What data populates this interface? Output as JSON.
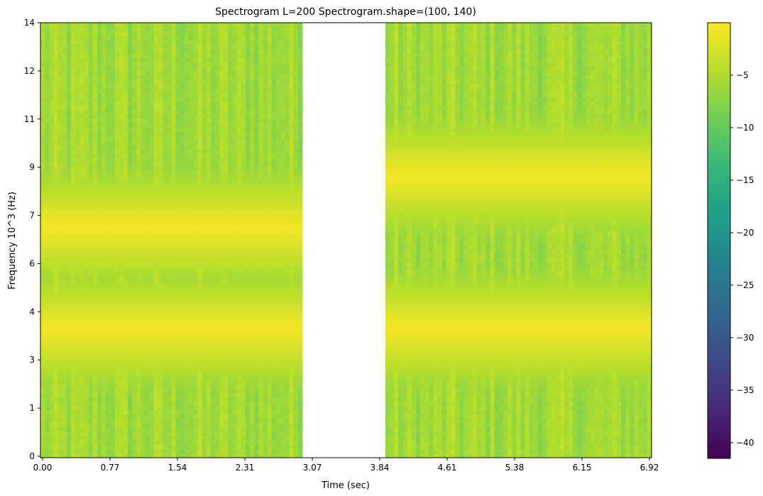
{
  "chart_data": {
    "type": "heatmap",
    "title": "Spectrogram L=200 Spectrogram.shape=(100, 140)",
    "xlabel": "Time (sec)",
    "ylabel": "Frequency 10^3 (Hz)",
    "xticks": [
      "0.00",
      "0.77",
      "1.54",
      "2.31",
      "3.07",
      "3.84",
      "4.61",
      "5.38",
      "6.15",
      "6.92"
    ],
    "yticks": [
      "0",
      "1",
      "3",
      "4",
      "6",
      "7",
      "9",
      "11",
      "12",
      "14"
    ],
    "shape": [
      100,
      140
    ],
    "gap": {
      "from_column": 60,
      "to_column": 79,
      "note": "no data"
    },
    "segments": [
      {
        "columns": [
          0,
          59
        ],
        "tones_khz": [
          4.15,
          7.4
        ]
      },
      {
        "columns": [
          79,
          139
        ],
        "tones_khz": [
          4.15,
          9.05
        ]
      }
    ],
    "background_level": -6,
    "tone_level": -0.5,
    "colorbar": {
      "colormap": "viridis",
      "range": [
        -41.5,
        0
      ],
      "ticks": [
        "-5",
        "-10",
        "-15",
        "-20",
        "-25",
        "-30",
        "-35",
        "-40"
      ],
      "tick_values": [
        -5,
        -10,
        -15,
        -20,
        -25,
        -30,
        -35,
        -40
      ]
    },
    "colors": {
      "viridis": [
        "#440154",
        "#482878",
        "#3e4989",
        "#31688e",
        "#26828e",
        "#1f9e89",
        "#35b779",
        "#6ece58",
        "#b5de2b",
        "#fde725"
      ]
    },
    "grid": false,
    "legend": "none"
  }
}
